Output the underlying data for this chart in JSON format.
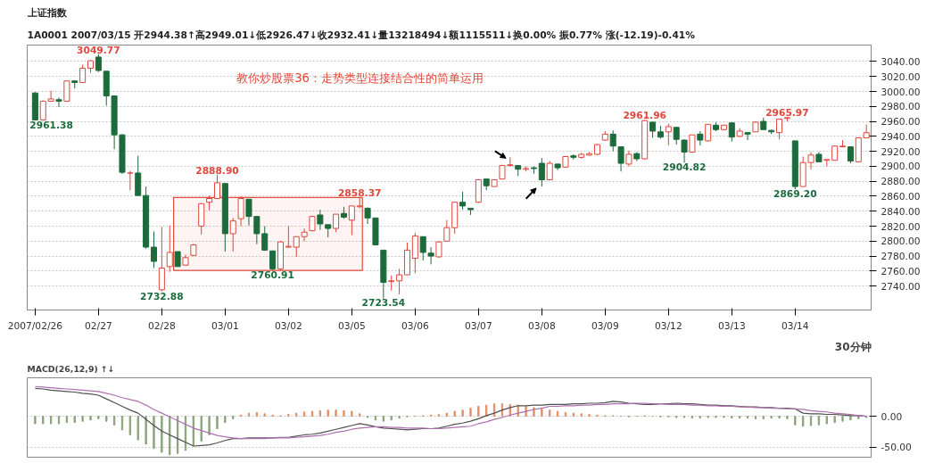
{
  "chart_data": [
    {
      "type": "candlestick",
      "title": "教你炒股票36：走势类型连接结合性的简单运用",
      "annotations": [
        "上证指数",
        "1A0001 2007/03/15 开2944.38↑高2949.01↓低2926.47↓收2932.41↓量13218494↓额1115511↓换0.00% 振0.77% 涨(-12.19)-0.41%",
        "30分钟"
      ],
      "categories": [
        "2007/02/26",
        null,
        null,
        null,
        null,
        null,
        null,
        null,
        "02/27",
        null,
        null,
        null,
        null,
        null,
        null,
        null,
        "02/28",
        null,
        null,
        null,
        null,
        null,
        null,
        null,
        "03/01",
        null,
        null,
        null,
        null,
        null,
        null,
        null,
        "03/02",
        null,
        null,
        null,
        null,
        null,
        null,
        null,
        "03/05",
        null,
        null,
        null,
        null,
        null,
        null,
        null,
        "03/06",
        null,
        null,
        null,
        null,
        null,
        null,
        null,
        "03/07",
        null,
        null,
        null,
        null,
        null,
        null,
        null,
        "03/08",
        null,
        null,
        null,
        null,
        null,
        null,
        null,
        "03/09",
        null,
        null,
        null,
        null,
        null,
        null,
        null,
        "03/12",
        null,
        null,
        null,
        null,
        null,
        null,
        null,
        "03/13",
        null,
        null,
        null,
        null,
        null,
        null,
        null,
        "03/14",
        null,
        null,
        null,
        null,
        null,
        null,
        null,
        null,
        null
      ],
      "ohlc": [
        [
          2998,
          2999,
          2961.38,
          2962
        ],
        [
          2962,
          2988,
          2961,
          2987
        ],
        [
          2987,
          3001,
          2986,
          2990
        ],
        [
          2989,
          2992,
          2979,
          2987
        ],
        [
          2987,
          3015,
          2986,
          3014
        ],
        [
          3014,
          3015,
          3004,
          3012
        ],
        [
          3012,
          3036,
          3011,
          3031
        ],
        [
          3031,
          3042,
          3025,
          3041
        ],
        [
          3046,
          3049.77,
          3026,
          3028
        ],
        [
          3027,
          3027,
          2981,
          2994
        ],
        [
          2994,
          2995,
          2923,
          2942
        ],
        [
          2942,
          2943,
          2890,
          2892
        ],
        [
          2891,
          2894,
          2868,
          2891
        ],
        [
          2891,
          2914,
          2861,
          2861
        ],
        [
          2861,
          2873,
          2790,
          2792
        ],
        [
          2792,
          2813,
          2764,
          2773
        ],
        [
          2735,
          2819,
          2732.88,
          2764
        ],
        [
          2766,
          2821,
          2759,
          2785
        ],
        [
          2786,
          2786,
          2766,
          2766
        ],
        [
          2768,
          2782,
          2767,
          2778
        ],
        [
          2781,
          2796,
          2780,
          2795
        ],
        [
          2820,
          2851,
          2809,
          2850
        ],
        [
          2852,
          2861,
          2841,
          2857
        ],
        [
          2857,
          2888.9,
          2857,
          2878
        ],
        [
          2877,
          2877,
          2786,
          2810
        ],
        [
          2810,
          2831,
          2786,
          2827
        ],
        [
          2830,
          2860,
          2820,
          2857
        ],
        [
          2856,
          2856,
          2821,
          2833
        ],
        [
          2833,
          2833,
          2796,
          2810
        ],
        [
          2810,
          2820,
          2787,
          2788
        ],
        [
          2787,
          2787,
          2760.91,
          2763
        ],
        [
          2763,
          2800,
          2761,
          2799
        ],
        [
          2792,
          2820,
          2791,
          2793
        ],
        [
          2792,
          2806,
          2779,
          2806
        ],
        [
          2806,
          2817,
          2800,
          2812
        ],
        [
          2814,
          2834,
          2813,
          2833
        ],
        [
          2835,
          2842,
          2815,
          2823
        ],
        [
          2822,
          2822,
          2805,
          2817
        ],
        [
          2817,
          2836,
          2812,
          2836
        ],
        [
          2837,
          2846,
          2830,
          2832
        ],
        [
          2828,
          2847,
          2808,
          2847
        ],
        [
          2846,
          2858.37,
          2844,
          2847
        ],
        [
          2844,
          2845,
          2823,
          2831
        ],
        [
          2831,
          2831,
          2795,
          2795
        ],
        [
          2788,
          2788,
          2723.54,
          2745
        ],
        [
          2746,
          2754,
          2734,
          2747
        ],
        [
          2747,
          2763,
          2729,
          2755
        ],
        [
          2755,
          2798,
          2755,
          2788
        ],
        [
          2777,
          2811,
          2757,
          2807
        ],
        [
          2806,
          2806,
          2774,
          2785
        ],
        [
          2784,
          2792,
          2769,
          2780
        ],
        [
          2779,
          2800,
          2778,
          2799
        ],
        [
          2800,
          2828,
          2800,
          2818
        ],
        [
          2818,
          2852,
          2810,
          2852
        ],
        [
          2852,
          2866,
          2842,
          2847
        ],
        [
          2844,
          2844,
          2835,
          2842
        ],
        [
          2852,
          2883,
          2851,
          2882
        ],
        [
          2883,
          2883,
          2868,
          2874
        ],
        [
          2873,
          2882,
          2873,
          2882
        ],
        [
          2883,
          2902,
          2883,
          2901
        ],
        [
          2901,
          2912,
          2900,
          2902
        ],
        [
          2901,
          2901,
          2887,
          2896
        ],
        [
          2896,
          2900,
          2893,
          2897
        ],
        [
          2898,
          2900,
          2890,
          2897
        ],
        [
          2904,
          2911,
          2873,
          2882
        ],
        [
          2882,
          2907,
          2882,
          2904
        ],
        [
          2903,
          2903,
          2895,
          2898
        ],
        [
          2899,
          2913,
          2898,
          2913
        ],
        [
          2914,
          2916,
          2909,
          2912
        ],
        [
          2912,
          2918,
          2910,
          2916
        ],
        [
          2915,
          2919,
          2914,
          2917
        ],
        [
          2916,
          2930,
          2915,
          2929
        ],
        [
          2935,
          2947,
          2934,
          2943
        ],
        [
          2943,
          2948,
          2920,
          2927
        ],
        [
          2926,
          2926,
          2893,
          2904
        ],
        [
          2903,
          2921,
          2900,
          2916
        ],
        [
          2917,
          2919,
          2907,
          2910
        ],
        [
          2910,
          2961.96,
          2909,
          2961
        ],
        [
          2959,
          2959,
          2938,
          2947
        ],
        [
          2946,
          2954,
          2937,
          2939
        ],
        [
          2946,
          2957,
          2928,
          2953
        ],
        [
          2952,
          2952,
          2929,
          2936
        ],
        [
          2935,
          2936,
          2904.82,
          2919
        ],
        [
          2919,
          2942,
          2918,
          2942
        ],
        [
          2943,
          2947,
          2928,
          2935
        ],
        [
          2934,
          2956,
          2933,
          2956
        ],
        [
          2955,
          2959,
          2947,
          2949
        ],
        [
          2949,
          2955,
          2948,
          2955
        ],
        [
          2958,
          2959,
          2933,
          2939
        ],
        [
          2940,
          2951,
          2939,
          2947
        ],
        [
          2945,
          2946,
          2935,
          2943
        ],
        [
          2946,
          2960,
          2946,
          2959
        ],
        [
          2960,
          2965,
          2949,
          2949
        ],
        [
          2948,
          2949,
          2943,
          2946
        ],
        [
          2945,
          2963,
          2936,
          2963
        ],
        [
          2964,
          2965.97,
          2960,
          2965
        ],
        [
          2934,
          2934,
          2869.2,
          2873
        ],
        [
          2873,
          2913,
          2873,
          2905
        ],
        [
          2905,
          2919,
          2896,
          2915
        ],
        [
          2916,
          2919,
          2906,
          2906
        ],
        [
          2908,
          2909,
          2900,
          2909
        ],
        [
          2908,
          2928,
          2908,
          2927
        ],
        [
          2926,
          2935,
          2926,
          2927
        ],
        [
          2926,
          2926,
          2904,
          2907
        ],
        [
          2906,
          2939,
          2906,
          2938
        ],
        [
          2938,
          2956,
          2938,
          2945
        ]
      ],
      "colors": [
        "#1d6b3c",
        "#e0463c",
        "#e0463c",
        "#1d6b3c",
        "#e0463c",
        "#1d6b3c",
        "#e0463c",
        "#e0463c",
        "#1d6b3c",
        "#1d6b3c",
        "#1d6b3c",
        "#1d6b3c",
        "#e0463c",
        "#1d6b3c",
        "#1d6b3c",
        "#1d6b3c",
        "#e0463c",
        "#e0463c",
        "#1d6b3c",
        "#e0463c",
        "#e0463c",
        "#e0463c",
        "#e0463c",
        "#e0463c",
        "#1d6b3c",
        "#e0463c",
        "#e0463c",
        "#1d6b3c",
        "#1d6b3c",
        "#1d6b3c",
        "#1d6b3c",
        "#e0463c",
        "#e0463c",
        "#e0463c",
        "#e0463c",
        "#e0463c",
        "#1d6b3c",
        "#1d6b3c",
        "#e0463c",
        "#1d6b3c",
        "#e0463c",
        "#e0463c",
        "#1d6b3c",
        "#1d6b3c",
        "#1d6b3c",
        "#e0463c",
        "#e0463c",
        "#e0463c",
        "#e0463c",
        "#1d6b3c",
        "#1d6b3c",
        "#e0463c",
        "#e0463c",
        "#e0463c",
        "#1d6b3c",
        "#1d6b3c",
        "#e0463c",
        "#1d6b3c",
        "#e0463c",
        "#e0463c",
        "#e0463c",
        "#1d6b3c",
        "#e0463c",
        "#1d6b3c",
        "#1d6b3c",
        "#e0463c",
        "#1d6b3c",
        "#e0463c",
        "#1d6b3c",
        "#e0463c",
        "#e0463c",
        "#e0463c",
        "#e0463c",
        "#1d6b3c",
        "#1d6b3c",
        "#e0463c",
        "#1d6b3c",
        "#e0463c",
        "#1d6b3c",
        "#1d6b3c",
        "#e0463c",
        "#1d6b3c",
        "#1d6b3c",
        "#e0463c",
        "#1d6b3c",
        "#e0463c",
        "#1d6b3c",
        "#e0463c",
        "#1d6b3c",
        "#e0463c",
        "#1d6b3c",
        "#e0463c",
        "#1d6b3c",
        "#1d6b3c",
        "#e0463c",
        "#e0463c",
        "#1d6b3c",
        "#e0463c",
        "#e0463c",
        "#1d6b3c",
        "#e0463c",
        "#e0463c",
        "#e0463c",
        "#1d6b3c",
        "#e0463c",
        "#e0463c"
      ],
      "value_labels": [
        "2961.38",
        null,
        null,
        null,
        null,
        null,
        null,
        null,
        "3049.77",
        null,
        null,
        null,
        null,
        null,
        null,
        null,
        "2732.88",
        null,
        null,
        null,
        null,
        null,
        null,
        "2888.90",
        null,
        null,
        null,
        null,
        null,
        null,
        "2760.91",
        null,
        null,
        null,
        null,
        null,
        null,
        null,
        null,
        null,
        null,
        "2858.37",
        null,
        null,
        "2723.54",
        null,
        null,
        null,
        null,
        null,
        null,
        null,
        null,
        null,
        null,
        null,
        null,
        null,
        null,
        null,
        null,
        null,
        null,
        null,
        null,
        null,
        null,
        null,
        null,
        null,
        null,
        null,
        null,
        null,
        null,
        null,
        null,
        "2961.96",
        null,
        null,
        null,
        null,
        "2904.82",
        null,
        null,
        null,
        null,
        null,
        null,
        null,
        null,
        null,
        null,
        null,
        null,
        "2965.97",
        "2869.20",
        null,
        null,
        null,
        null,
        null,
        null,
        null,
        null,
        null
      ],
      "bands": [
        {
          "axis": "y",
          "from": 2760.91,
          "to": 2858.37,
          "color": "#e04a3a"
        }
      ],
      "ylim": [
        2708,
        3062
      ],
      "yticks": [
        {
          "value": 2740,
          "label": "2740.00"
        },
        {
          "value": 2760,
          "label": "2760.00"
        },
        {
          "value": 2780,
          "label": "2780.00"
        },
        {
          "value": 2800,
          "label": "2800.00"
        },
        {
          "value": 2820,
          "label": "2820.00"
        },
        {
          "value": 2840,
          "label": "2840.00"
        },
        {
          "value": 2860,
          "label": "2860.00"
        },
        {
          "value": 2880,
          "label": "2880.00"
        },
        {
          "value": 2900,
          "label": "2900.00"
        },
        {
          "value": 2920,
          "label": "2920.00"
        },
        {
          "value": 2940,
          "label": "2940.00"
        },
        {
          "value": 2960,
          "label": "2960.00"
        },
        {
          "value": 2980,
          "label": "2980.00"
        },
        {
          "value": 3000,
          "label": "3000.00"
        },
        {
          "value": 3020,
          "label": "3020.00"
        },
        {
          "value": 3040,
          "label": "3040.00"
        }
      ],
      "grid": "y"
    },
    {
      "type": "line",
      "title": "MACD(26,12,9) ↑↓",
      "categories": [
        null,
        null,
        null,
        null,
        null,
        null,
        null,
        null,
        null,
        null,
        null,
        null,
        null,
        null,
        null,
        null,
        null,
        null,
        null,
        null,
        null,
        null,
        null,
        null,
        null,
        null,
        null,
        null,
        null,
        null,
        null,
        null,
        null,
        null,
        null,
        null,
        null,
        null,
        null,
        null,
        null,
        null,
        null,
        null,
        null,
        null,
        null,
        null,
        null,
        null,
        null,
        null,
        null,
        null,
        null,
        null,
        null,
        null,
        null,
        null,
        null,
        null,
        null,
        null,
        null,
        null,
        null,
        null,
        null,
        null,
        null,
        null,
        null,
        null,
        null,
        null,
        null,
        null,
        null,
        null,
        null,
        null,
        null,
        null,
        null,
        null,
        null,
        null,
        null,
        null,
        null,
        null,
        null,
        null,
        null,
        null,
        null,
        null,
        null,
        null,
        null,
        null,
        null,
        null,
        null,
        null
      ],
      "ylim": [
        -66,
        62
      ],
      "yticks": [
        {
          "value": 0,
          "label": "0.00"
        },
        {
          "value": -50,
          "label": "-50.00"
        }
      ],
      "tick_labels": "y",
      "grid": "y",
      "series": [
        {
          "type": "bar",
          "values": [
            -12,
            -12,
            -12,
            -12,
            -10,
            -10,
            -8,
            -6,
            -4,
            -8,
            -14,
            -22,
            -30,
            -38,
            -45,
            -52,
            -58,
            -62,
            -60,
            -55,
            -48,
            -40,
            -30,
            -20,
            -10,
            -4,
            2,
            5,
            6,
            4,
            2,
            1,
            3,
            5,
            7,
            8,
            9,
            10,
            10,
            9,
            8,
            4,
            -2,
            -6,
            -8,
            -6,
            -3,
            -1,
            0,
            1,
            2,
            3,
            5,
            8,
            10,
            13,
            16,
            18,
            20,
            20,
            19,
            18,
            16,
            14,
            12,
            10,
            8,
            6,
            5,
            4,
            3,
            2,
            1,
            1,
            0,
            -1,
            0,
            1,
            0,
            -1,
            -1,
            -2,
            -2,
            -3,
            -3,
            -2,
            -2,
            -2,
            -3,
            -3,
            -3,
            -4,
            -4,
            -3,
            -3,
            -4,
            -14,
            -16,
            -15,
            -14,
            -12,
            -10,
            -8,
            -6,
            -4,
            -2
          ],
          "colors": [
            "#8aa37a",
            "#8aa37a",
            "#8aa37a",
            "#8aa37a",
            "#8aa37a",
            "#8aa37a",
            "#8aa37a",
            "#8aa37a",
            "#8aa37a",
            "#8aa37a",
            "#8aa37a",
            "#8aa37a",
            "#8aa37a",
            "#8aa37a",
            "#8aa37a",
            "#8aa37a",
            "#8aa37a",
            "#8aa37a",
            "#8aa37a",
            "#8aa37a",
            "#8aa37a",
            "#8aa37a",
            "#8aa37a",
            "#8aa37a",
            "#8aa37a",
            "#8aa37a",
            "#e0906a",
            "#e0906a",
            "#e0906a",
            "#e0906a",
            "#e0906a",
            "#e0906a",
            "#e0906a",
            "#e0906a",
            "#e0906a",
            "#e0906a",
            "#e0906a",
            "#e0906a",
            "#e0906a",
            "#e0906a",
            "#e0906a",
            "#e0906a",
            "#8aa37a",
            "#8aa37a",
            "#8aa37a",
            "#8aa37a",
            "#8aa37a",
            "#8aa37a",
            "#8aa37a",
            "#e0906a",
            "#e0906a",
            "#e0906a",
            "#e0906a",
            "#e0906a",
            "#e0906a",
            "#e0906a",
            "#e0906a",
            "#e0906a",
            "#e0906a",
            "#e0906a",
            "#e0906a",
            "#e0906a",
            "#e0906a",
            "#e0906a",
            "#e0906a",
            "#e0906a",
            "#e0906a",
            "#e0906a",
            "#e0906a",
            "#e0906a",
            "#e0906a",
            "#e0906a",
            "#e0906a",
            "#e0906a",
            "#8aa37a",
            "#8aa37a",
            "#8aa37a",
            "#e0906a",
            "#8aa37a",
            "#8aa37a",
            "#8aa37a",
            "#8aa37a",
            "#8aa37a",
            "#8aa37a",
            "#8aa37a",
            "#8aa37a",
            "#8aa37a",
            "#8aa37a",
            "#8aa37a",
            "#8aa37a",
            "#8aa37a",
            "#8aa37a",
            "#8aa37a",
            "#8aa37a",
            "#8aa37a",
            "#8aa37a",
            "#8aa37a",
            "#8aa37a",
            "#8aa37a",
            "#8aa37a",
            "#8aa37a",
            "#8aa37a",
            "#8aa37a",
            "#8aa37a",
            "#8aa37a",
            "#8aa37a"
          ]
        },
        {
          "type": "line",
          "color": "#505050",
          "values": [
            45,
            44,
            42,
            41,
            40,
            39,
            37,
            36,
            34,
            28,
            22,
            16,
            10,
            5,
            -5,
            -15,
            -24,
            -30,
            -36,
            -42,
            -48,
            -47,
            -46,
            -43,
            -39,
            -36,
            -36,
            -35,
            -35,
            -35,
            -35,
            -34,
            -34,
            -32,
            -30,
            -29,
            -27,
            -24,
            -21,
            -18,
            -15,
            -12,
            -14,
            -17,
            -19,
            -20,
            -21,
            -22,
            -21,
            -20,
            -20,
            -19,
            -16,
            -13,
            -11,
            -8,
            -4,
            1,
            5,
            10,
            14,
            17,
            17,
            18,
            18,
            19,
            19,
            19,
            20,
            20,
            21,
            21,
            22,
            24,
            23,
            21,
            20,
            19,
            19,
            20,
            20,
            21,
            20,
            20,
            19,
            18,
            18,
            17,
            17,
            16,
            15,
            15,
            14,
            14,
            13,
            13,
            12,
            5,
            4,
            4,
            3,
            3,
            2,
            1,
            1,
            0
          ]
        },
        {
          "type": "line",
          "color": "#b070b0",
          "values": [
            48,
            47,
            46,
            45,
            44,
            43,
            42,
            41,
            40,
            37,
            34,
            30,
            27,
            24,
            18,
            11,
            5,
            -1,
            -7,
            -13,
            -19,
            -23,
            -27,
            -31,
            -33,
            -35,
            -36,
            -36,
            -36,
            -36,
            -35,
            -35,
            -35,
            -34,
            -33,
            -32,
            -31,
            -29,
            -26,
            -24,
            -21,
            -19,
            -18,
            -17,
            -17,
            -18,
            -18,
            -19,
            -19,
            -19,
            -20,
            -20,
            -19,
            -18,
            -17,
            -16,
            -12,
            -9,
            -5,
            -2,
            2,
            5,
            8,
            11,
            13,
            16,
            16,
            17,
            17,
            18,
            18,
            19,
            19,
            20,
            20,
            20,
            21,
            21,
            20,
            20,
            19,
            19,
            19,
            18,
            18,
            17,
            17,
            16,
            16,
            15,
            15,
            14,
            14,
            13,
            13,
            12,
            12,
            11,
            9,
            8,
            7,
            5,
            4,
            3,
            1,
            0
          ]
        }
      ]
    }
  ]
}
